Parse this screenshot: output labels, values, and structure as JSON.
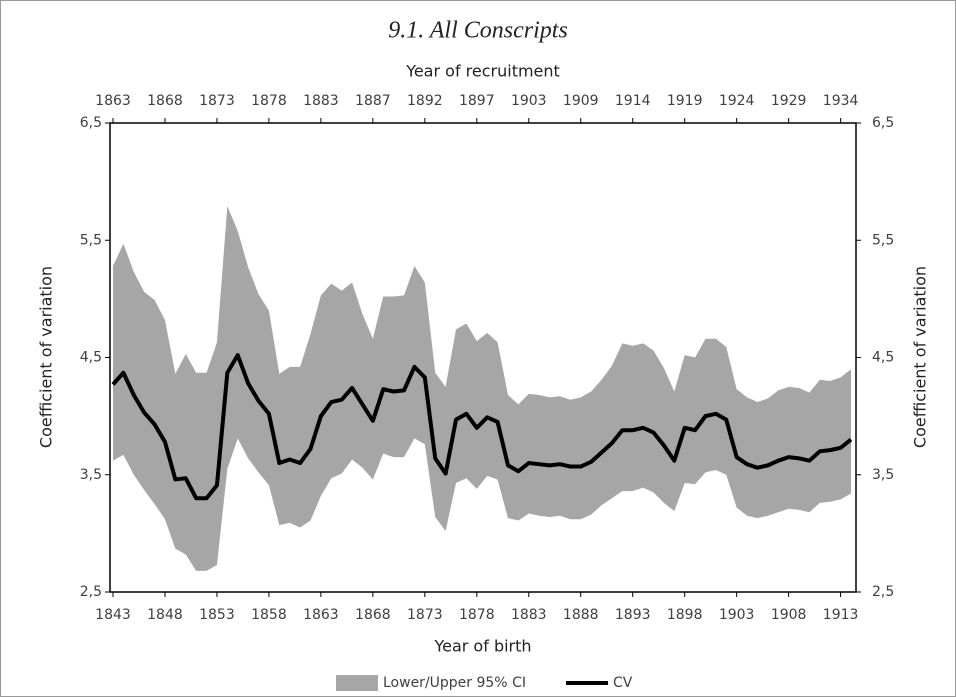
{
  "chart_data": {
    "type": "line",
    "title": "9.1. All Conscripts",
    "x_label": "Year of birth",
    "x2_label": "Year of recruitment",
    "y_label": "Coefficient of variation",
    "y2_label": "Coefficient of variation",
    "x": [
      1843,
      1844,
      1845,
      1846,
      1847,
      1848,
      1849,
      1850,
      1851,
      1852,
      1853,
      1854,
      1855,
      1856,
      1857,
      1858,
      1859,
      1860,
      1861,
      1862,
      1863,
      1864,
      1865,
      1866,
      1867,
      1868,
      1869,
      1870,
      1871,
      1872,
      1873,
      1874,
      1875,
      1876,
      1877,
      1878,
      1879,
      1880,
      1881,
      1882,
      1883,
      1884,
      1885,
      1886,
      1887,
      1888,
      1889,
      1890,
      1891,
      1892,
      1893,
      1894,
      1895,
      1896,
      1897,
      1898,
      1899,
      1900,
      1901,
      1902,
      1903,
      1904,
      1905,
      1906,
      1907,
      1908,
      1909,
      1910,
      1911,
      1912,
      1913,
      1914
    ],
    "xlim": [
      1843,
      1914
    ],
    "xticks": [
      1843,
      1848,
      1853,
      1858,
      1863,
      1868,
      1873,
      1878,
      1883,
      1888,
      1893,
      1898,
      1903,
      1908,
      1913
    ],
    "x2ticks": [
      {
        "value": 1843,
        "label": "1863"
      },
      {
        "value": 1848,
        "label": "1868"
      },
      {
        "value": 1853,
        "label": "1873"
      },
      {
        "value": 1858,
        "label": "1878"
      },
      {
        "value": 1863,
        "label": "1883"
      },
      {
        "value": 1868,
        "label": "1887"
      },
      {
        "value": 1873,
        "label": "1892"
      },
      {
        "value": 1878,
        "label": "1897"
      },
      {
        "value": 1883,
        "label": "1903"
      },
      {
        "value": 1888,
        "label": "1909"
      },
      {
        "value": 1893,
        "label": "1914"
      },
      {
        "value": 1898,
        "label": "1919"
      },
      {
        "value": 1903,
        "label": "1924"
      },
      {
        "value": 1908,
        "label": "1929"
      },
      {
        "value": 1913,
        "label": "1934"
      }
    ],
    "ylim": [
      2.5,
      6.5
    ],
    "yticks": [
      {
        "value": 2.5,
        "label": "2,5"
      },
      {
        "value": 3.5,
        "label": "3,5"
      },
      {
        "value": 4.5,
        "label": "4,5"
      },
      {
        "value": 5.5,
        "label": "5,5"
      },
      {
        "value": 6.5,
        "label": "6,5"
      }
    ],
    "y2lim": [
      2.5,
      6.5
    ],
    "y2ticks": [
      {
        "value": 2.5,
        "label": "2,5"
      },
      {
        "value": 3.5,
        "label": "3,5"
      },
      {
        "value": 4.5,
        "label": "4,5"
      },
      {
        "value": 5.5,
        "label": "5,5"
      },
      {
        "value": 6.5,
        "label": "6,5"
      }
    ],
    "legend": "bottom",
    "series": [
      {
        "name": "Lower/Upper 95% CI",
        "type": "band",
        "color": "#a6a6a6",
        "upper": [
          5.28,
          5.47,
          5.23,
          5.06,
          4.99,
          4.82,
          4.36,
          4.53,
          4.37,
          4.37,
          4.63,
          5.79,
          5.58,
          5.27,
          5.04,
          4.9,
          4.36,
          4.42,
          4.42,
          4.7,
          5.03,
          5.13,
          5.07,
          5.14,
          4.87,
          4.66,
          5.02,
          5.02,
          5.03,
          5.28,
          5.14,
          4.37,
          4.25,
          4.74,
          4.79,
          4.64,
          4.71,
          4.63,
          4.18,
          4.1,
          4.19,
          4.18,
          4.16,
          4.17,
          4.14,
          4.16,
          4.21,
          4.31,
          4.43,
          4.62,
          4.6,
          4.62,
          4.56,
          4.41,
          4.21,
          4.52,
          4.5,
          4.66,
          4.66,
          4.59,
          4.23,
          4.16,
          4.12,
          4.15,
          4.22,
          4.25,
          4.24,
          4.2,
          4.31,
          4.3,
          4.33,
          4.4
        ],
        "lower": [
          3.62,
          3.67,
          3.5,
          3.37,
          3.25,
          3.12,
          2.87,
          2.82,
          2.68,
          2.68,
          2.73,
          3.55,
          3.81,
          3.64,
          3.52,
          3.41,
          3.07,
          3.09,
          3.05,
          3.11,
          3.32,
          3.47,
          3.51,
          3.63,
          3.56,
          3.46,
          3.68,
          3.65,
          3.65,
          3.81,
          3.76,
          3.14,
          3.02,
          3.43,
          3.47,
          3.38,
          3.49,
          3.46,
          3.13,
          3.11,
          3.17,
          3.15,
          3.14,
          3.15,
          3.12,
          3.12,
          3.16,
          3.24,
          3.3,
          3.36,
          3.36,
          3.39,
          3.35,
          3.26,
          3.19,
          3.43,
          3.42,
          3.52,
          3.54,
          3.5,
          3.22,
          3.15,
          3.13,
          3.15,
          3.18,
          3.21,
          3.2,
          3.18,
          3.26,
          3.27,
          3.29,
          3.34
        ]
      },
      {
        "name": "CV",
        "type": "line",
        "color": "#000000",
        "values": [
          4.27,
          4.37,
          4.18,
          4.03,
          3.93,
          3.78,
          3.46,
          3.47,
          3.3,
          3.3,
          3.41,
          4.37,
          4.52,
          4.28,
          4.13,
          4.02,
          3.6,
          3.63,
          3.6,
          3.72,
          4.0,
          4.12,
          4.14,
          4.24,
          4.1,
          3.96,
          4.23,
          4.21,
          4.22,
          4.42,
          4.33,
          3.64,
          3.51,
          3.97,
          4.02,
          3.9,
          3.99,
          3.95,
          3.58,
          3.53,
          3.6,
          3.59,
          3.58,
          3.59,
          3.57,
          3.57,
          3.61,
          3.69,
          3.77,
          3.88,
          3.88,
          3.9,
          3.86,
          3.75,
          3.62,
          3.9,
          3.88,
          4.0,
          4.02,
          3.97,
          3.65,
          3.59,
          3.56,
          3.58,
          3.62,
          3.65,
          3.64,
          3.62,
          3.7,
          3.71,
          3.73,
          3.8
        ]
      }
    ]
  }
}
